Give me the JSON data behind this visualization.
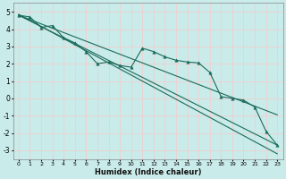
{
  "xlabel": "Humidex (Indice chaleur)",
  "xlim": [
    -0.5,
    23.5
  ],
  "ylim": [
    -3.5,
    5.5
  ],
  "xticks": [
    0,
    1,
    2,
    3,
    4,
    5,
    6,
    7,
    8,
    9,
    10,
    11,
    12,
    13,
    14,
    15,
    16,
    17,
    18,
    19,
    20,
    21,
    22,
    23
  ],
  "yticks": [
    -3,
    -2,
    -1,
    0,
    1,
    2,
    3,
    4,
    5
  ],
  "bg_color": "#c9ebe9",
  "line_color": "#1a6b5a",
  "grid_color": "#e0f0ee",
  "data_x": [
    0,
    1,
    2,
    3,
    4,
    5,
    6,
    7,
    8,
    9,
    10,
    11,
    12,
    13,
    14,
    15,
    16,
    17,
    18,
    19,
    20,
    21,
    22,
    23
  ],
  "data_y": [
    4.8,
    4.7,
    4.1,
    4.2,
    3.5,
    3.2,
    2.7,
    2.0,
    2.1,
    1.9,
    1.8,
    2.9,
    2.7,
    2.4,
    2.2,
    2.1,
    2.05,
    1.5,
    0.1,
    0.0,
    -0.1,
    -0.5,
    -1.9,
    -2.7
  ],
  "trend_smooth_x": [
    0,
    1,
    2,
    3,
    4,
    5,
    6,
    7,
    8,
    9,
    10,
    11,
    12,
    13,
    14,
    15,
    16,
    17,
    18,
    19,
    20,
    21,
    22,
    23
  ],
  "trend_smooth_y": [
    4.8,
    4.55,
    4.3,
    4.05,
    3.8,
    3.55,
    3.3,
    3.05,
    2.8,
    2.55,
    2.3,
    2.05,
    1.8,
    1.55,
    1.3,
    1.05,
    0.8,
    0.55,
    0.3,
    0.05,
    -0.2,
    -0.45,
    -0.7,
    -0.95
  ],
  "trend_steep_x": [
    0,
    1,
    2,
    3,
    4,
    5,
    6,
    7,
    8,
    9,
    10,
    11,
    12,
    13,
    14,
    15,
    16,
    17,
    18,
    19,
    20,
    21,
    22,
    23
  ],
  "trend_steep_y": [
    4.85,
    4.5,
    4.15,
    3.8,
    3.45,
    3.1,
    2.75,
    2.4,
    2.05,
    1.7,
    1.35,
    1.0,
    0.65,
    0.3,
    -0.05,
    -0.4,
    -0.75,
    -1.1,
    -1.45,
    -1.8,
    -2.15,
    -2.5,
    -2.85,
    -3.2
  ],
  "line_x": [
    0,
    23
  ],
  "line_y": [
    4.8,
    -2.7
  ]
}
